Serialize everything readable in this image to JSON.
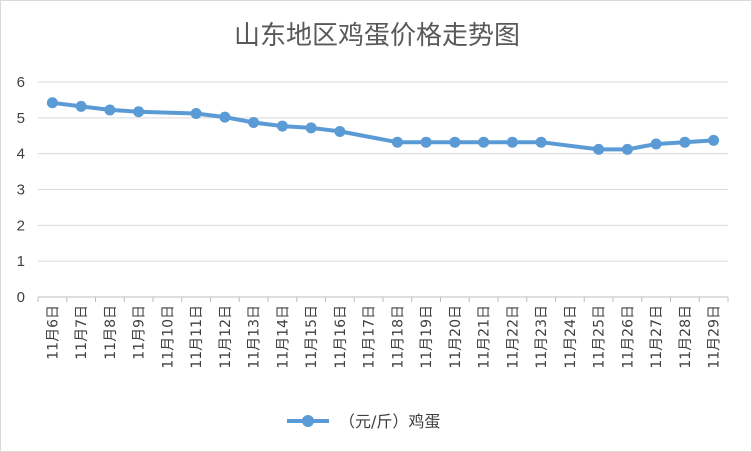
{
  "chart_data": {
    "type": "line",
    "title": "山东地区鸡蛋价格走势图",
    "categories": [
      "11月6日",
      "11月7日",
      "11月8日",
      "11月9日",
      "11月10日",
      "11月11日",
      "11月12日",
      "11月13日",
      "11月14日",
      "11月15日",
      "11月16日",
      "11月17日",
      "11月18日",
      "11月19日",
      "11月20日",
      "11月21日",
      "11月22日",
      "11月23日",
      "11月24日",
      "11月25日",
      "11月26日",
      "11月27日",
      "11月28日",
      "11月29日"
    ],
    "series": [
      {
        "name": "（元/斤）鸡蛋",
        "color": "#5B9BD5",
        "values": [
          5.42,
          5.32,
          5.22,
          5.17,
          null,
          5.12,
          5.02,
          4.87,
          4.77,
          4.72,
          4.62,
          null,
          4.32,
          4.32,
          4.32,
          4.32,
          4.32,
          4.32,
          null,
          4.12,
          4.12,
          4.27,
          4.32,
          4.37
        ]
      }
    ],
    "ylim": [
      0,
      6
    ],
    "yticks": [
      0,
      1,
      2,
      3,
      4,
      5,
      6
    ],
    "grid": true,
    "legend_position": "bottom"
  }
}
